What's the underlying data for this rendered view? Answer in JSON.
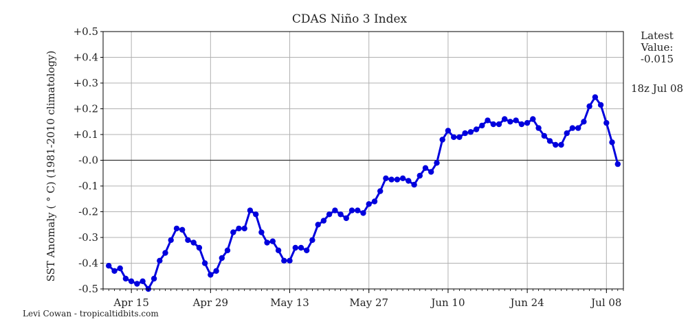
{
  "chart_data": {
    "type": "line",
    "title": "CDAS Niño 3 Index",
    "ylabel": "SST Anomaly ( ° C) (1981-2010 climatology)",
    "xlabel": "",
    "ylim": [
      -0.5,
      0.5
    ],
    "xlim": [
      "Apr 10",
      "Jul 11"
    ],
    "yticks": [
      0.5,
      0.4,
      0.3,
      0.2,
      0.1,
      0.0,
      -0.1,
      -0.2,
      -0.3,
      -0.4,
      -0.5
    ],
    "ytick_labels": [
      "+0.5",
      "+0.4",
      "+0.3",
      "+0.2",
      "+0.1",
      "-0.0",
      "-0.1",
      "-0.2",
      "-0.3",
      "-0.4",
      "-0.5"
    ],
    "xticks": [
      "Apr 15",
      "Apr 29",
      "May 13",
      "May 27",
      "Jun 10",
      "Jun 24",
      "Jul 08"
    ],
    "grid": true,
    "zero_line": true,
    "series": [
      {
        "color": "#0000dd",
        "start_date": "Apr 11",
        "step_days": 1,
        "values": [
          -0.41,
          -0.43,
          -0.42,
          -0.46,
          -0.47,
          -0.48,
          -0.47,
          -0.5,
          -0.46,
          -0.39,
          -0.36,
          -0.31,
          -0.265,
          -0.27,
          -0.31,
          -0.32,
          -0.34,
          -0.4,
          -0.445,
          -0.43,
          -0.38,
          -0.35,
          -0.28,
          -0.265,
          -0.265,
          -0.195,
          -0.21,
          -0.28,
          -0.32,
          -0.315,
          -0.35,
          -0.39,
          -0.39,
          -0.34,
          -0.34,
          -0.35,
          -0.31,
          -0.25,
          -0.235,
          -0.21,
          -0.195,
          -0.21,
          -0.225,
          -0.195,
          -0.195,
          -0.205,
          -0.17,
          -0.16,
          -0.12,
          -0.07,
          -0.075,
          -0.075,
          -0.07,
          -0.08,
          -0.095,
          -0.06,
          -0.03,
          -0.045,
          -0.01,
          0.08,
          0.115,
          0.09,
          0.09,
          0.105,
          0.11,
          0.12,
          0.135,
          0.155,
          0.14,
          0.14,
          0.16,
          0.15,
          0.155,
          0.14,
          0.145,
          0.16,
          0.125,
          0.095,
          0.075,
          0.06,
          0.06,
          0.105,
          0.125,
          0.125,
          0.15,
          0.21,
          0.245,
          0.215,
          0.145,
          0.07,
          -0.015
        ]
      }
    ]
  },
  "latest_value": {
    "line1": "Latest",
    "line2": "Value:",
    "value": "-0.015"
  },
  "timestamp": "18z Jul 08",
  "credit": "Levi Cowan - tropicaltidbits.com"
}
